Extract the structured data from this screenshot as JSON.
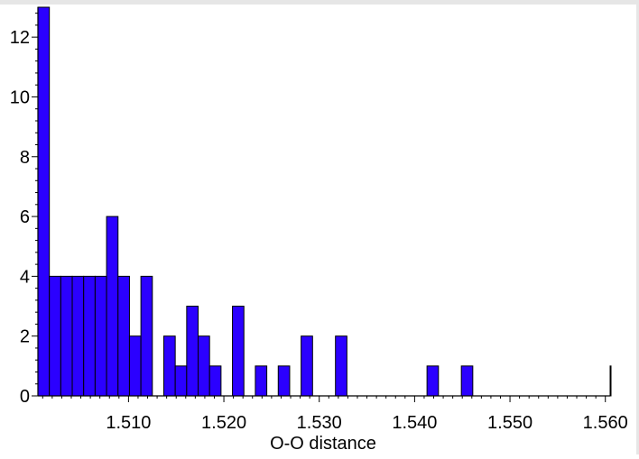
{
  "chart_data": {
    "type": "bar",
    "title": "",
    "xlabel": "O-O distance",
    "ylabel": "",
    "xlim": [
      1.5005,
      1.5605
    ],
    "ylim": [
      0,
      13
    ],
    "x_ticks": [
      1.51,
      1.52,
      1.53,
      1.54,
      1.55,
      1.56
    ],
    "x_tick_labels": [
      "1.510",
      "1.520",
      "1.530",
      "1.540",
      "1.550",
      "1.560"
    ],
    "y_ticks": [
      0,
      2,
      4,
      6,
      8,
      10,
      12
    ],
    "y_tick_labels": [
      "0",
      "2",
      "4",
      "6",
      "8",
      "10",
      "12"
    ],
    "bin_width": 0.0012,
    "grid": false,
    "bar_color": "#2b00ff",
    "bins": [
      {
        "x": 1.5005,
        "count": 13
      },
      {
        "x": 1.5017,
        "count": 4
      },
      {
        "x": 1.5029,
        "count": 4
      },
      {
        "x": 1.5041,
        "count": 4
      },
      {
        "x": 1.5053,
        "count": 4
      },
      {
        "x": 1.5065,
        "count": 4
      },
      {
        "x": 1.5077,
        "count": 6
      },
      {
        "x": 1.5089,
        "count": 4
      },
      {
        "x": 1.5101,
        "count": 2
      },
      {
        "x": 1.5113,
        "count": 4
      },
      {
        "x": 1.5137,
        "count": 2
      },
      {
        "x": 1.5149,
        "count": 1
      },
      {
        "x": 1.5161,
        "count": 3
      },
      {
        "x": 1.5173,
        "count": 2
      },
      {
        "x": 1.5185,
        "count": 1
      },
      {
        "x": 1.5209,
        "count": 3
      },
      {
        "x": 1.5233,
        "count": 1
      },
      {
        "x": 1.5257,
        "count": 1
      },
      {
        "x": 1.5281,
        "count": 2
      },
      {
        "x": 1.5317,
        "count": 2
      },
      {
        "x": 1.5413,
        "count": 1
      },
      {
        "x": 1.5449,
        "count": 1
      },
      {
        "x": 1.5605,
        "count": 1
      }
    ]
  }
}
